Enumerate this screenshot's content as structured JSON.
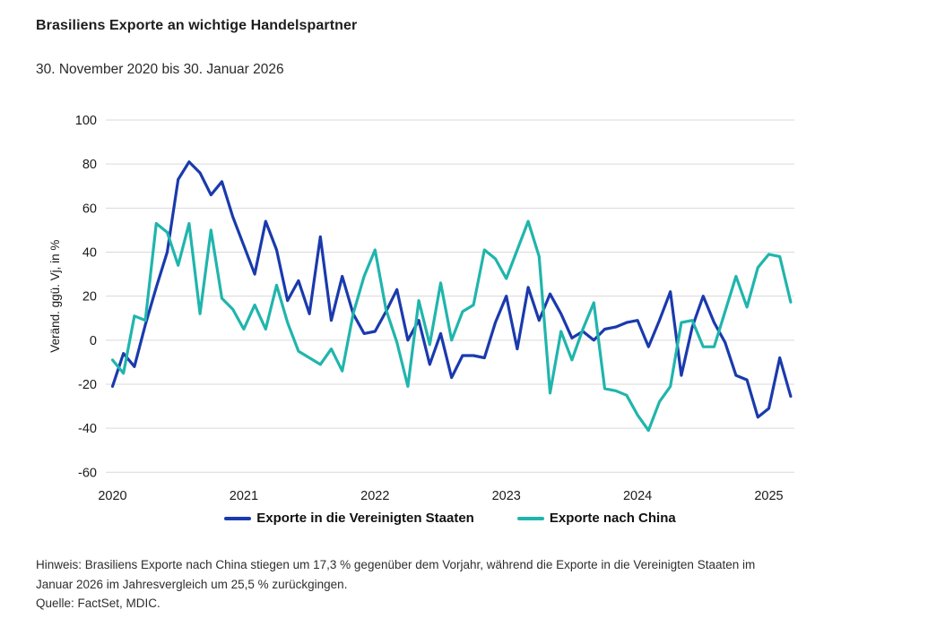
{
  "header": {
    "title": "Brasiliens Exporte an wichtige Handelspartner",
    "subtitle": "30. November 2020 bis 30. Januar 2026"
  },
  "chart_data": {
    "type": "line",
    "title": "Brasiliens Exporte an wichtige Handelspartner",
    "subtitle": "30. November 2020 bis 30. Januar 2026",
    "x_unit": "monthly, Nov 2020 - Jan 2026",
    "xlabel": "",
    "ylabel": "Veränd. ggü. Vj, in %",
    "ylim": [
      -60,
      100
    ],
    "yticks": [
      100,
      80,
      60,
      40,
      20,
      0,
      -20,
      -40,
      -60
    ],
    "xticks": [
      {
        "pos": 0,
        "label": "2020"
      },
      {
        "pos": 12,
        "label": "2021"
      },
      {
        "pos": 24,
        "label": "2022"
      },
      {
        "pos": 36,
        "label": "2023"
      },
      {
        "pos": 48,
        "label": "2024"
      },
      {
        "pos": 60,
        "label": "2025"
      }
    ],
    "grid": true,
    "legend_position": "bottom",
    "gridline_color": "#d9d9d9",
    "series": [
      {
        "name": "Exporte in die Vereinigten Staaten",
        "color": "#1a3aad",
        "values": [
          -21,
          -6,
          -12,
          7,
          24,
          40,
          73,
          81,
          76,
          66,
          72,
          56,
          43,
          30,
          54,
          41,
          18,
          27,
          12,
          47,
          9,
          29,
          12,
          3,
          4,
          13,
          23,
          0,
          9,
          -11,
          3,
          -17,
          -7,
          -7,
          -8,
          8,
          20,
          -4,
          24,
          9,
          21,
          12,
          1,
          4,
          0,
          5,
          6,
          8,
          9,
          -3,
          9,
          22,
          -16,
          6,
          20,
          8,
          -1,
          -16,
          -18,
          -35,
          -31,
          -8,
          -25.5
        ]
      },
      {
        "name": "Exporte nach China",
        "color": "#20b5ac",
        "values": [
          -9,
          -15,
          11,
          9,
          53,
          49,
          34,
          53,
          12,
          50,
          19,
          14,
          5,
          16,
          5,
          25,
          8,
          -5,
          -8,
          -11,
          -4,
          -14,
          12,
          29,
          41,
          14,
          -1,
          -21,
          18,
          -2,
          26,
          0,
          13,
          16,
          41,
          37,
          28,
          41,
          54,
          38,
          -24,
          4,
          -9,
          5,
          17,
          -22,
          -23,
          -25,
          -34,
          -41,
          -28,
          -21,
          8,
          9,
          -3,
          -3,
          13,
          29,
          15,
          33,
          39,
          38,
          17.3
        ]
      }
    ]
  },
  "note": {
    "hinweis": "Hinweis: Brasiliens Exporte nach China stiegen um 17,3 % gegenüber dem Vorjahr, während die Exporte in die Vereinigten Staaten im Januar 2026 im Jahresvergleich um 25,5 % zurückgingen.",
    "quelle": "Quelle: FactSet, MDIC."
  }
}
